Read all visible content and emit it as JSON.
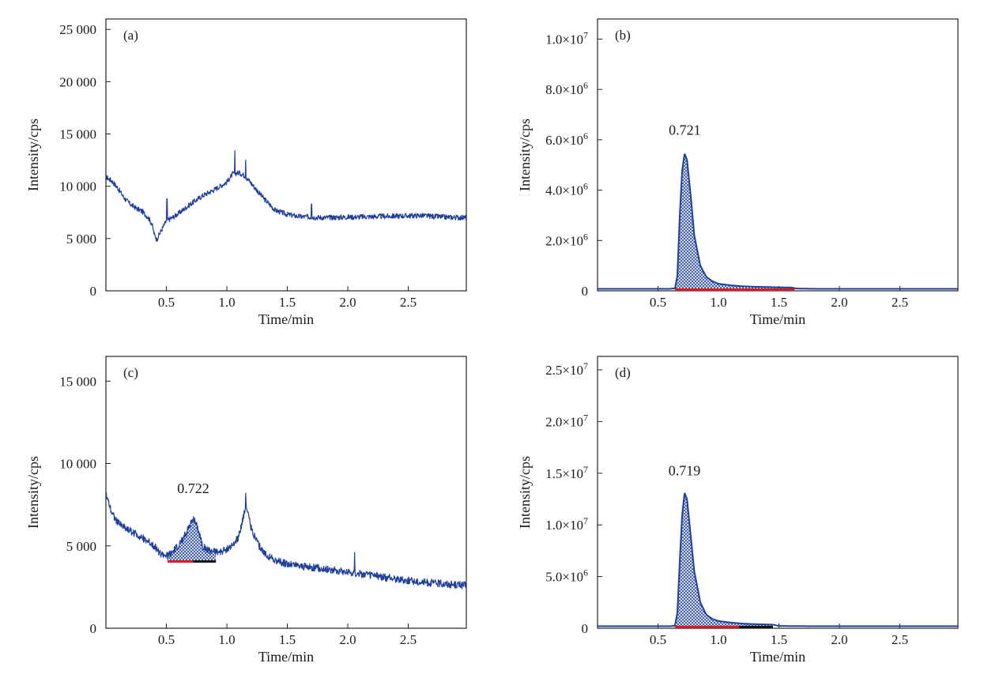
{
  "chart_data": [
    {
      "panel": "(a)",
      "type": "line",
      "xlabel": "Time/min",
      "ylabel": "Intensity/cps",
      "xlim": [
        0,
        2.98
      ],
      "ylim": [
        0,
        26000
      ],
      "xticks": [
        0.5,
        1.0,
        1.5,
        2.0,
        2.5
      ],
      "xtick_labels": [
        "0.5",
        "1.0",
        "1.5",
        "2.0",
        "2.5"
      ],
      "yticks": [
        0,
        5000,
        10000,
        15000,
        20000,
        25000
      ],
      "ytick_labels": [
        "0",
        "5 000",
        "10 000",
        "15 000",
        "20 000",
        "25 000"
      ],
      "peak_label": "",
      "color": "#1f3f9a",
      "noise": 250,
      "x": [
        0,
        0.05,
        0.1,
        0.15,
        0.2,
        0.25,
        0.3,
        0.35,
        0.38,
        0.4,
        0.42,
        0.45,
        0.5,
        0.55,
        0.6,
        0.7,
        0.8,
        0.9,
        1.0,
        1.05,
        1.1,
        1.15,
        1.2,
        1.3,
        1.4,
        1.5,
        1.6,
        1.7,
        1.8,
        2.0,
        2.2,
        2.4,
        2.6,
        2.8,
        2.98
      ],
      "y": [
        10900,
        10500,
        9800,
        8900,
        8300,
        7900,
        7600,
        7000,
        6400,
        5400,
        4900,
        5600,
        6700,
        7000,
        7400,
        8300,
        9100,
        9700,
        10400,
        11200,
        11300,
        11000,
        10300,
        8900,
        7700,
        7300,
        7100,
        7050,
        7000,
        7050,
        7100,
        7150,
        7200,
        7050,
        7000
      ],
      "spikes": [
        [
          0.505,
          8800
        ],
        [
          1.065,
          13400
        ],
        [
          1.155,
          12500
        ],
        [
          1.7,
          8300
        ]
      ]
    },
    {
      "panel": "(b)",
      "type": "area",
      "xlabel": "Time/min",
      "ylabel": "Intensity/cps",
      "xlim": [
        0,
        2.98
      ],
      "ylim": [
        0,
        10800000
      ],
      "xticks": [
        0.5,
        1.0,
        1.5,
        2.0,
        2.5
      ],
      "xtick_labels": [
        "0.5",
        "1.0",
        "1.5",
        "2.0",
        "2.5"
      ],
      "yticks": [
        0,
        2000000,
        4000000,
        6000000,
        8000000,
        10000000
      ],
      "ytick_labels": [
        "0",
        "2.0×10^6",
        "4.0×10^6",
        "6.0×10^6",
        "8.0×10^6",
        "1.0×10^7"
      ],
      "peak_label": "0.721",
      "peak_label_at": [
        0.721,
        6200000
      ],
      "color": "#1f3f9a",
      "noise": 0,
      "x": [
        0,
        0.6,
        0.64,
        0.66,
        0.68,
        0.7,
        0.72,
        0.74,
        0.77,
        0.8,
        0.85,
        0.9,
        0.95,
        1.0,
        1.1,
        1.2,
        1.3,
        1.4,
        1.5,
        1.6,
        1.65,
        1.8,
        2.0,
        2.5,
        2.98
      ],
      "y": [
        80000,
        80000,
        100000,
        600000,
        3000000,
        4800000,
        5450000,
        5200000,
        3800000,
        2200000,
        1000000,
        550000,
        380000,
        280000,
        220000,
        180000,
        160000,
        150000,
        140000,
        130000,
        90000,
        80000,
        80000,
        80000,
        80000
      ],
      "shade_range": [
        0.64,
        1.63
      ],
      "baseline_segments": [
        {
          "from": 0.64,
          "to": 1.17,
          "color": "#e0191e"
        },
        {
          "from": 1.17,
          "to": 1.63,
          "color": "#e0191e"
        }
      ]
    },
    {
      "panel": "(c)",
      "type": "line",
      "xlabel": "Time/min",
      "ylabel": "Intensity/cps",
      "xlim": [
        0,
        2.98
      ],
      "ylim": [
        0,
        16500
      ],
      "xticks": [
        0.5,
        1.0,
        1.5,
        2.0,
        2.5
      ],
      "xtick_labels": [
        "0.5",
        "1.0",
        "1.5",
        "2.0",
        "2.5"
      ],
      "yticks": [
        0,
        5000,
        10000,
        15000
      ],
      "ytick_labels": [
        "0",
        "5 000",
        "10 000",
        "15 000"
      ],
      "peak_label": "0.722",
      "peak_label_at": [
        0.722,
        8200
      ],
      "color": "#1f3f9a",
      "noise": 230,
      "x": [
        0,
        0.05,
        0.1,
        0.2,
        0.3,
        0.4,
        0.45,
        0.5,
        0.55,
        0.6,
        0.65,
        0.7,
        0.73,
        0.76,
        0.8,
        0.85,
        0.9,
        0.95,
        1.0,
        1.05,
        1.1,
        1.13,
        1.16,
        1.2,
        1.25,
        1.3,
        1.4,
        1.5,
        1.6,
        1.8,
        2.0,
        2.2,
        2.4,
        2.6,
        2.8,
        2.98
      ],
      "y": [
        8200,
        7000,
        6400,
        5900,
        5500,
        5000,
        4500,
        4400,
        4600,
        5000,
        5600,
        6400,
        6600,
        6100,
        5000,
        4700,
        4700,
        4600,
        4800,
        5000,
        5600,
        6600,
        7500,
        6100,
        5200,
        4600,
        4100,
        3900,
        3800,
        3600,
        3400,
        3200,
        3000,
        2800,
        2700,
        2600
      ],
      "spikes": [
        [
          1.155,
          8200
        ],
        [
          2.055,
          4600
        ]
      ],
      "shade_range": [
        0.51,
        0.91
      ],
      "shade_base": 4100,
      "baseline_segments": [
        {
          "from": 0.51,
          "to": 0.72,
          "color": "#e0191e"
        },
        {
          "from": 0.72,
          "to": 0.91,
          "color": "#111111"
        }
      ]
    },
    {
      "panel": "(d)",
      "type": "area",
      "xlabel": "Time/min",
      "ylabel": "Intensity/cps",
      "xlim": [
        0,
        2.98
      ],
      "ylim": [
        0,
        26300000
      ],
      "xticks": [
        0.5,
        1.0,
        1.5,
        2.0,
        2.5
      ],
      "xtick_labels": [
        "0.5",
        "1.0",
        "1.5",
        "2.0",
        "2.5"
      ],
      "yticks": [
        0,
        5000000,
        10000000,
        15000000,
        20000000,
        25000000
      ],
      "ytick_labels": [
        "0",
        "5.0×10^6",
        "1.0×10^7",
        "1.5×10^7",
        "2.0×10^7",
        "2.5×10^7"
      ],
      "peak_label": "0.719",
      "peak_label_at": [
        0.719,
        14800000
      ],
      "color": "#1f3f9a",
      "noise": 0,
      "x": [
        0,
        0.6,
        0.64,
        0.66,
        0.68,
        0.7,
        0.72,
        0.74,
        0.77,
        0.8,
        0.85,
        0.9,
        0.95,
        1.0,
        1.1,
        1.2,
        1.3,
        1.45,
        1.5,
        1.8,
        2.0,
        2.5,
        2.98
      ],
      "y": [
        200000,
        200000,
        250000,
        1500000,
        6500000,
        11000000,
        13100000,
        12500000,
        9000000,
        5500000,
        2500000,
        1300000,
        900000,
        700000,
        550000,
        450000,
        400000,
        350000,
        220000,
        200000,
        200000,
        200000,
        200000
      ],
      "shade_range": [
        0.64,
        1.45
      ],
      "baseline_segments": [
        {
          "from": 0.64,
          "to": 1.17,
          "color": "#e0191e"
        },
        {
          "from": 1.17,
          "to": 1.45,
          "color": "#111111"
        }
      ]
    }
  ]
}
